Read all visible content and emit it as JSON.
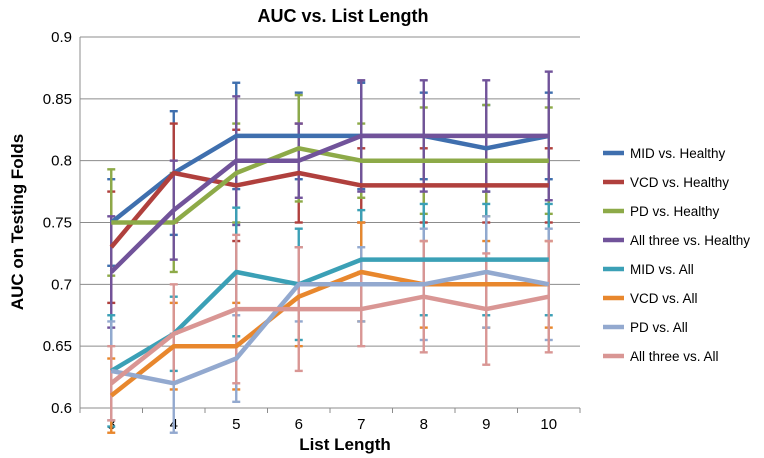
{
  "chart_data": {
    "type": "line",
    "title": "AUC vs. List Length",
    "xlabel": "List Length",
    "ylabel": "AUC on Testing Folds",
    "x": [
      3,
      4,
      5,
      6,
      7,
      8,
      9,
      10
    ],
    "ylim": [
      0.6,
      0.9
    ],
    "yticks": [
      "0.6",
      "0.65",
      "0.7",
      "0.75",
      "0.8",
      "0.85",
      "0.9"
    ],
    "grid": true,
    "legend_position": "right",
    "series": [
      {
        "name": "MID vs. Healthy",
        "color": "#3F6FAE",
        "values": [
          0.75,
          0.79,
          0.82,
          0.82,
          0.82,
          0.82,
          0.81,
          0.82
        ],
        "err": [
          0.035,
          0.05,
          0.043,
          0.035,
          0.043,
          0.035,
          0.035,
          0.035
        ]
      },
      {
        "name": "VCD vs. Healthy",
        "color": "#B0403D",
        "values": [
          0.73,
          0.79,
          0.78,
          0.79,
          0.78,
          0.78,
          0.78,
          0.78
        ],
        "err": [
          0.045,
          0.04,
          0.045,
          0.04,
          0.03,
          0.03,
          0.03,
          0.03
        ]
      },
      {
        "name": "PD vs. Healthy",
        "color": "#8DAA48",
        "values": [
          0.75,
          0.75,
          0.79,
          0.81,
          0.8,
          0.8,
          0.8,
          0.8
        ],
        "err": [
          0.043,
          0.04,
          0.04,
          0.043,
          0.03,
          0.043,
          0.045,
          0.043
        ]
      },
      {
        "name": "All three vs. Healthy",
        "color": "#71539A",
        "values": [
          0.71,
          0.76,
          0.8,
          0.8,
          0.82,
          0.82,
          0.82,
          0.82
        ],
        "err": [
          0.045,
          0.04,
          0.052,
          0.03,
          0.045,
          0.045,
          0.045,
          0.052
        ]
      },
      {
        "name": "MID vs. All",
        "color": "#3BA0B6",
        "values": [
          0.63,
          0.66,
          0.71,
          0.7,
          0.72,
          0.72,
          0.72,
          0.72
        ],
        "err": [
          0.045,
          0.03,
          0.052,
          0.045,
          0.04,
          0.045,
          0.045,
          0.045
        ]
      },
      {
        "name": "VCD vs. All",
        "color": "#E8872D",
        "values": [
          0.61,
          0.65,
          0.65,
          0.69,
          0.71,
          0.7,
          0.7,
          0.7
        ],
        "err": [
          0.03,
          0.035,
          0.035,
          0.04,
          0.04,
          0.035,
          0.035,
          0.035
        ]
      },
      {
        "name": "PD vs. All",
        "color": "#93A9CF",
        "values": [
          0.63,
          0.62,
          0.64,
          0.7,
          0.7,
          0.7,
          0.71,
          0.7
        ],
        "err": [
          0.04,
          0.04,
          0.035,
          0.03,
          0.03,
          0.045,
          0.045,
          0.045
        ]
      },
      {
        "name": "All three vs. All",
        "color": "#D99694",
        "values": [
          0.62,
          0.66,
          0.68,
          0.68,
          0.68,
          0.69,
          0.68,
          0.69
        ],
        "err": [
          0.03,
          0.04,
          0.06,
          0.05,
          0.03,
          0.045,
          0.045,
          0.045
        ]
      }
    ]
  }
}
